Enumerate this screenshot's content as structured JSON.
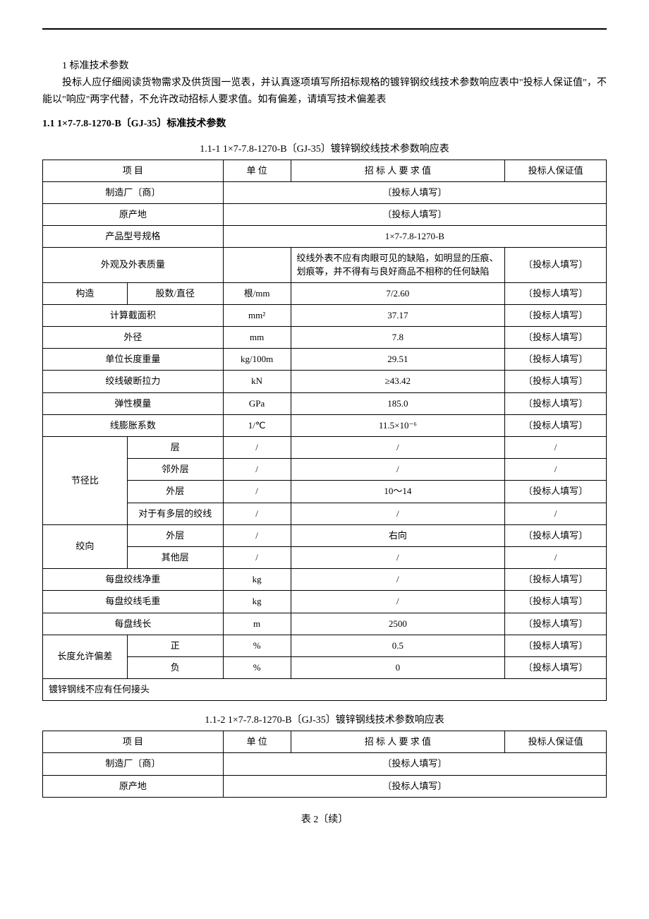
{
  "intro": {
    "title": "1 标准技术参数",
    "body": "投标人应仔细阅读货物需求及供货囤一览表，并认真逐项填写所招标规格的镀锌钢绞线技术参数响应表中\"投标人保证值\"，不能以\"响应\"两字代替，不允许改动招标人要求值。如有偏差，请填写技术偏差表"
  },
  "section_heading": "1.1  1×7-7.8-1270-B〔GJ-35〕标准技术参数",
  "table1": {
    "caption": "1.1-1  1×7-7.8-1270-B〔GJ-35〕镀锌钢绞线技术参数响应表",
    "headers": {
      "item": "项    目",
      "unit": "单  位",
      "required": "招 标 人 要 求 值",
      "bidder": "投标人保证值"
    },
    "rows": {
      "manufacturer": {
        "item": "制造厂〔商〕",
        "merged": "〔投标人填写〕"
      },
      "origin": {
        "item": "原产地",
        "merged": "〔投标人填写〕"
      },
      "model": {
        "item": "产品型号规格",
        "merged": "1×7-7.8-1270-B"
      },
      "appearance": {
        "item": "外观及外表质量",
        "unit": "",
        "req": "绞线外表不应有肉眼可见的缺陷，如明显的压痕、划痕等，并不得有与良好商品不相称的任何缺陷",
        "bid": "〔投标人填写〕"
      },
      "structure": {
        "item_l": "构造",
        "item_r": "股数/直径",
        "unit": "根/mm",
        "req": "7/2.60",
        "bid": "〔投标人填写〕"
      },
      "area": {
        "item": "计算截面积",
        "unit": "mm²",
        "req": "37.17",
        "bid": "〔投标人填写〕"
      },
      "diameter": {
        "item": "外径",
        "unit": "mm",
        "req": "7.8",
        "bid": "〔投标人填写〕"
      },
      "weight": {
        "item": "单位长度重量",
        "unit": "kg/100m",
        "req": "29.51",
        "bid": "〔投标人填写〕"
      },
      "break": {
        "item": "绞线破断拉力",
        "unit": "kN",
        "req": "≥43.42",
        "bid": "〔投标人填写〕"
      },
      "elastic": {
        "item": "弹性模量",
        "unit": "GPa",
        "req": "185.0",
        "bid": "〔投标人填写〕"
      },
      "expansion": {
        "item": "线膨胀系数",
        "unit": "1/℃",
        "req": "11.5×10⁻⁶",
        "bid": "〔投标人填写〕"
      },
      "pitch_label": "节径比",
      "pitch1": {
        "item_r": "层",
        "unit": "/",
        "req": "/",
        "bid": "/"
      },
      "pitch2": {
        "item_r": "邻外层",
        "unit": "/",
        "req": "/",
        "bid": "/"
      },
      "pitch3": {
        "item_r": "外层",
        "unit": "/",
        "req": "10～14",
        "bid": "〔投标人填写〕"
      },
      "pitch4": {
        "item_r": "对于有多层的绞线",
        "unit": "/",
        "req": "/",
        "bid": "/"
      },
      "twist_label": "绞向",
      "twist1": {
        "item_r": "外层",
        "unit": "/",
        "req": "右向",
        "bid": "〔投标人填写〕"
      },
      "twist2": {
        "item_r": "其他层",
        "unit": "/",
        "req": "/",
        "bid": "/"
      },
      "net": {
        "item": "每盘绞线净重",
        "unit": "kg",
        "req": "/",
        "bid": "〔投标人填写〕"
      },
      "gross": {
        "item": "每盘绞线毛重",
        "unit": "kg",
        "req": "/",
        "bid": "〔投标人填写〕"
      },
      "length": {
        "item": "每盘线长",
        "unit": "m",
        "req": "2500",
        "bid": "〔投标人填写〕"
      },
      "tol_label": "长度允许偏差",
      "tol_pos": {
        "item_r": "正",
        "unit": "%",
        "req": "0.5",
        "bid": "〔投标人填写〕"
      },
      "tol_neg": {
        "item_r": "负",
        "unit": "%",
        "req": "0",
        "bid": "〔投标人填写〕"
      },
      "note": "镀锌钢线不应有任何接头"
    }
  },
  "table2": {
    "caption": "1.1-2  1×7-7.8-1270-B〔GJ-35〕镀锌钢线技术参数响应表",
    "headers": {
      "item": "项    目",
      "unit": "单  位",
      "required": "招 标 人 要 求 值",
      "bidder": "投标人保证值"
    },
    "rows": {
      "manufacturer": {
        "item": "制造厂〔商〕",
        "merged": "〔投标人填写〕"
      },
      "origin": {
        "item": "原产地",
        "merged": "〔投标人填写〕"
      }
    }
  },
  "footer": "表 2〔续〕",
  "colors": {
    "text": "#000000",
    "background": "#ffffff",
    "border": "#000000"
  },
  "typography": {
    "font_family": "SimSun",
    "body_fontsize": 14,
    "cell_fontsize": 13
  }
}
